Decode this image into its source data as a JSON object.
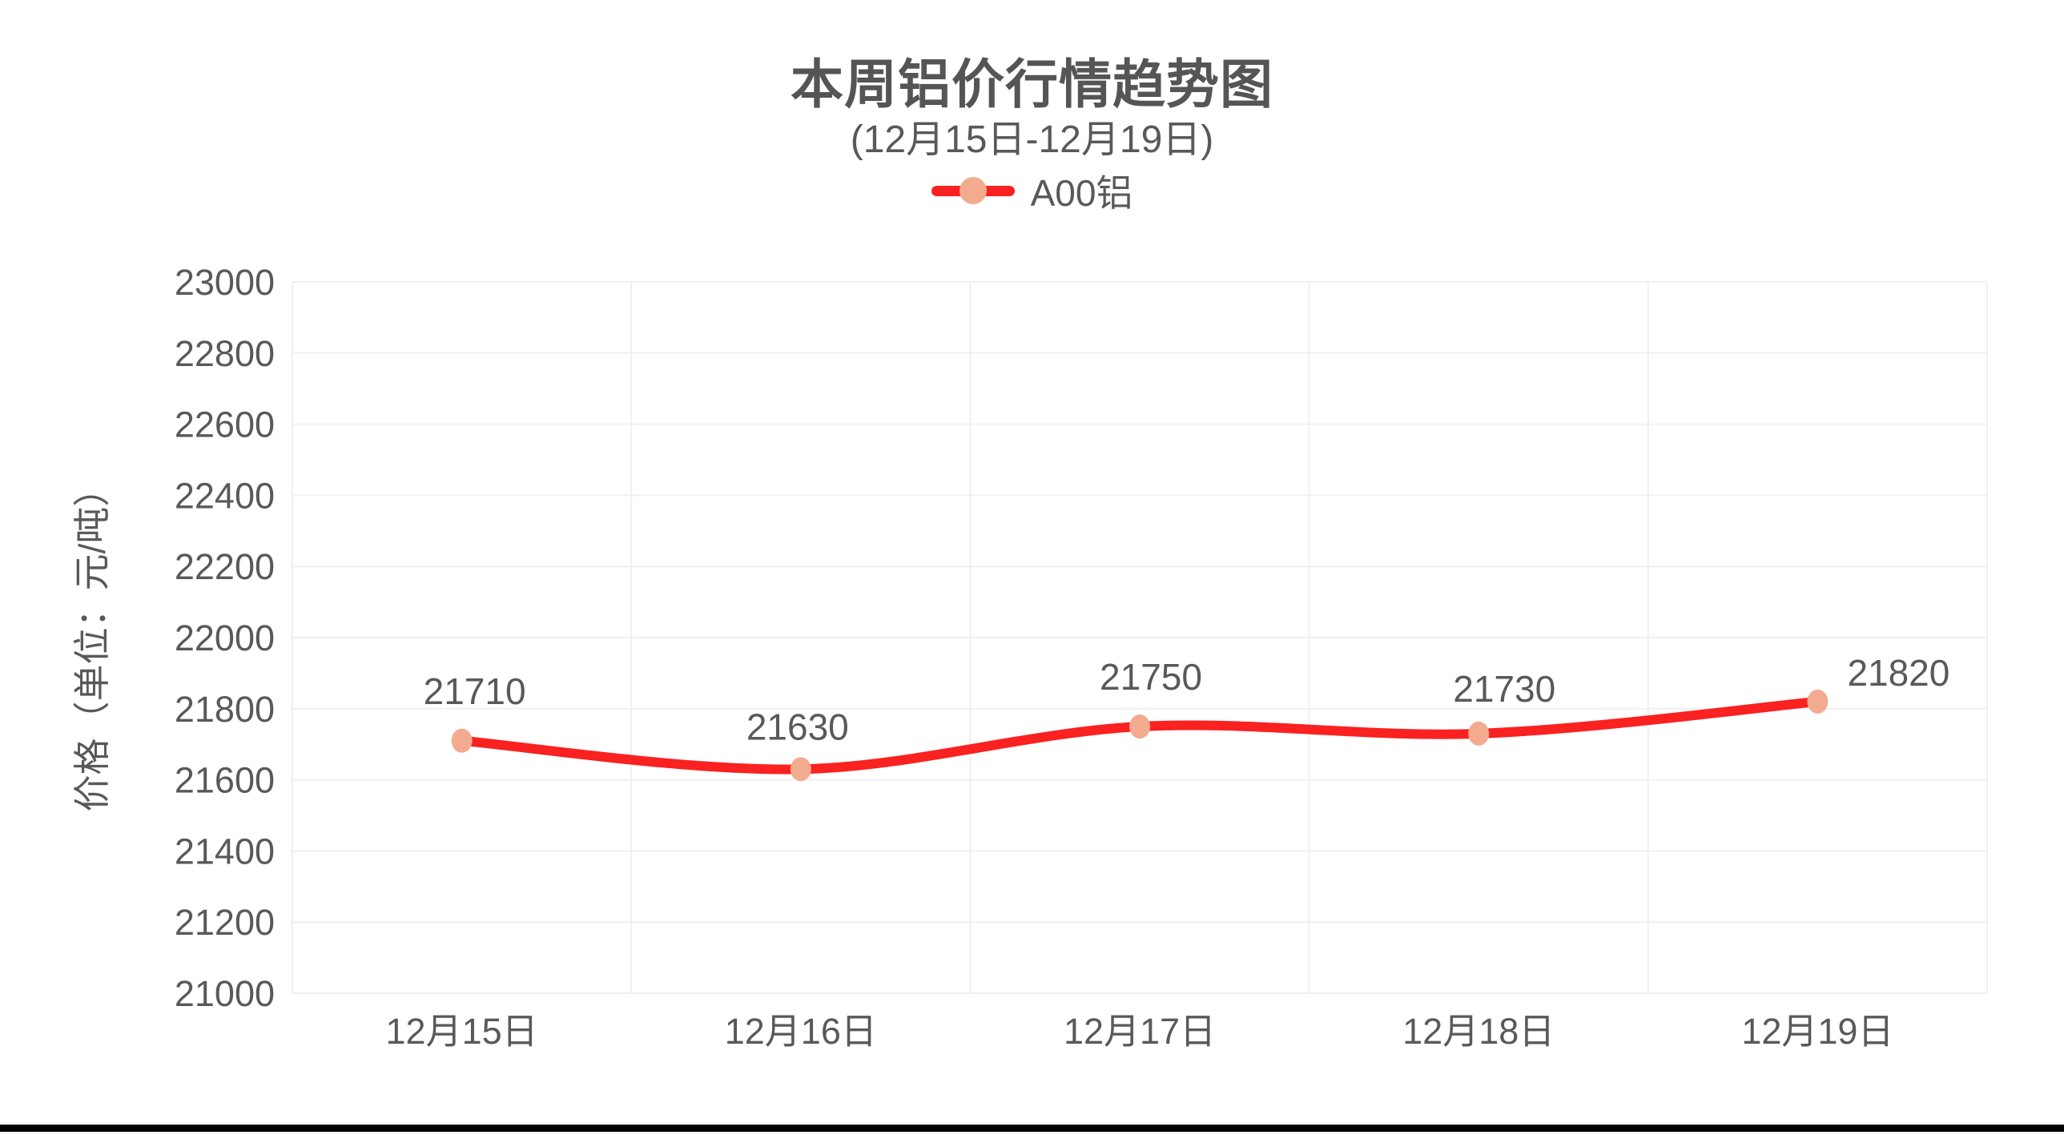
{
  "header": {
    "title": "本周铝价行情趋势图",
    "subtitle": "(12月15日-12月19日)"
  },
  "legend": {
    "items": [
      {
        "label": "A00铝",
        "line_color": "#fa2121",
        "marker_color": "#f3ab90"
      }
    ]
  },
  "chart_data": {
    "type": "line",
    "smooth": true,
    "title": "本周铝价行情趋势图",
    "subtitle": "(12月15日-12月19日)",
    "categories": [
      "12月15日",
      "12月16日",
      "12月17日",
      "12月18日",
      "12月19日"
    ],
    "series": [
      {
        "name": "A00铝",
        "values": [
          21710,
          21630,
          21750,
          21730,
          21820
        ],
        "line_color": "#fa2121",
        "marker_color": "#f3ab90"
      }
    ],
    "xlabel": "",
    "ylabel": "价格（单位：元/吨）",
    "ylim": [
      21000,
      23000
    ],
    "ytick_step": 200,
    "ytick_labels": [
      "21000",
      "21200",
      "21400",
      "21600",
      "21800",
      "22000",
      "22200",
      "22400",
      "22600",
      "22800",
      "23000"
    ],
    "grid": true,
    "grid_color": "#f0f0f0",
    "text_color": "#595959",
    "legend_position": "top",
    "data_labels_shown": true
  }
}
